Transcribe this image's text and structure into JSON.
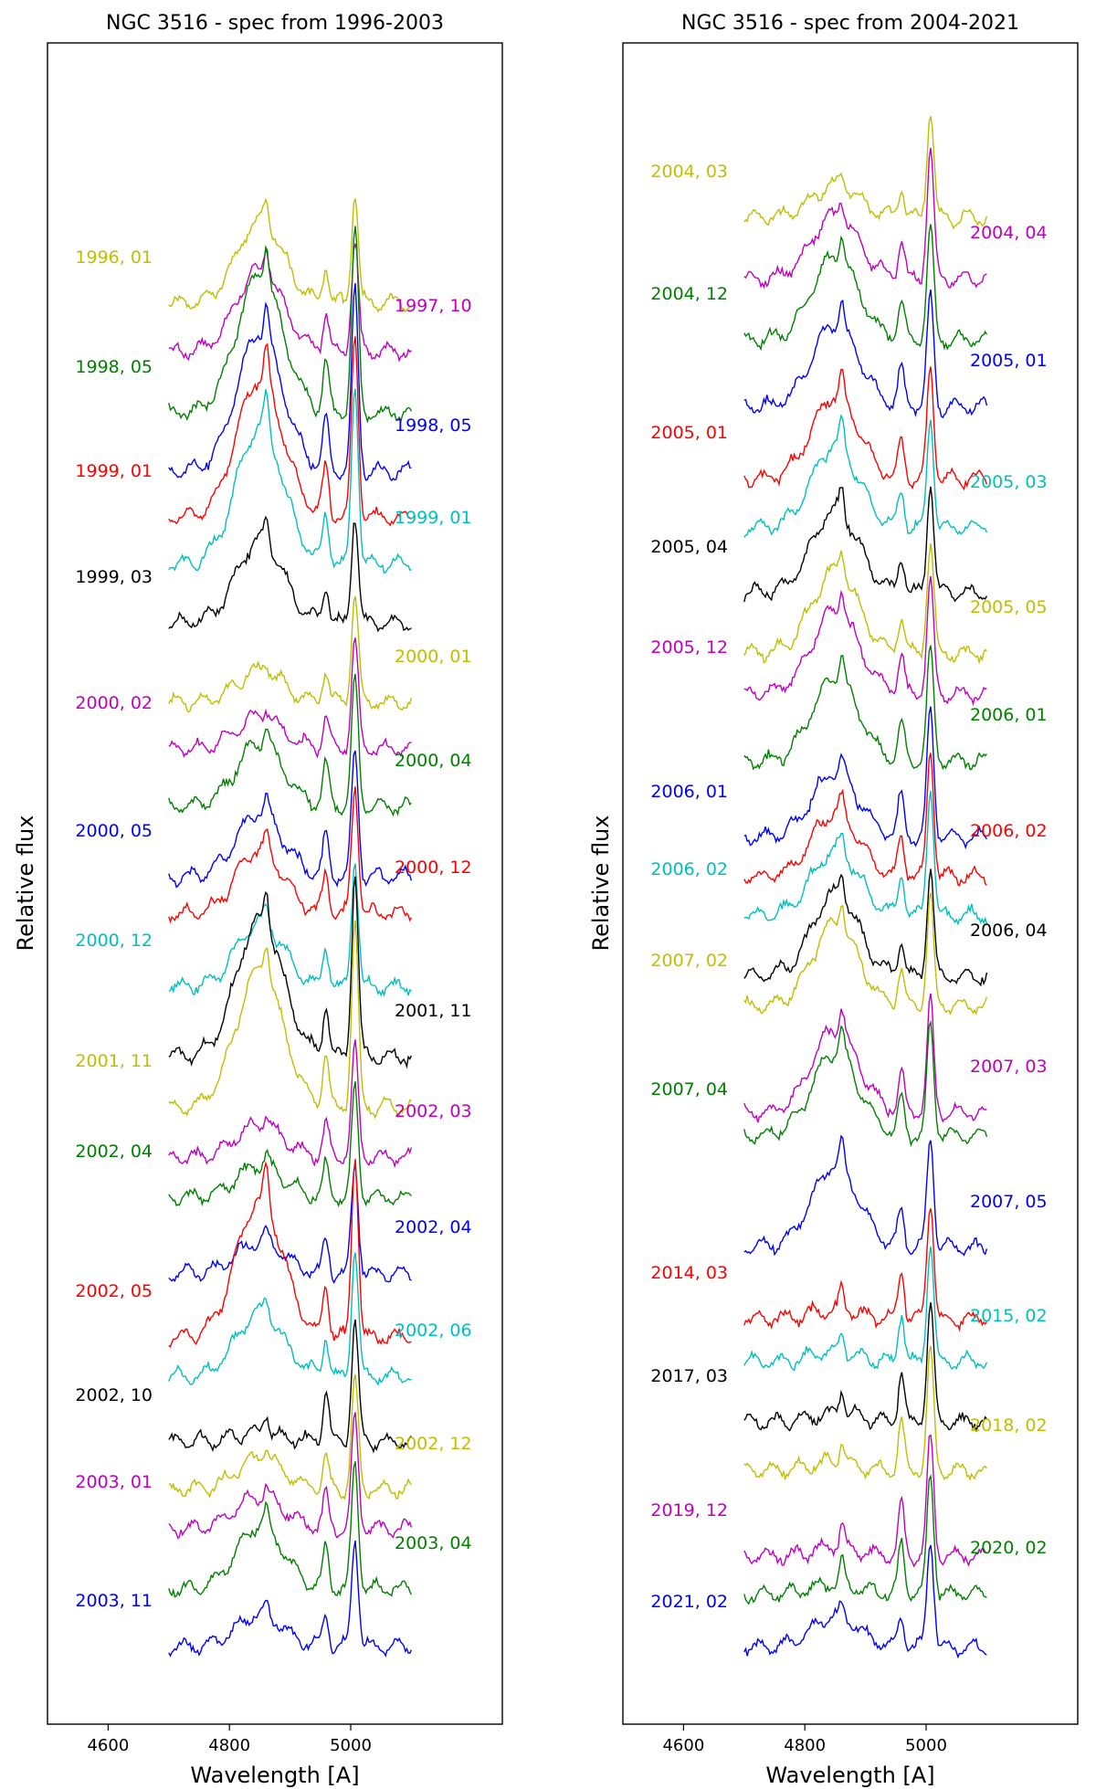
{
  "colors": {
    "y": "#bfbf00",
    "m": "#bf00bf",
    "g": "#007f00",
    "b": "#0000ff",
    "r": "#ff0000",
    "c": "#00bfbf",
    "k": "#000000"
  },
  "chart_data": [
    {
      "type": "line",
      "title": "NGC 3516 - spec from 1996-2003",
      "xlabel": "Wavelength [A]",
      "ylabel": "Relative flux",
      "xlim": [
        4500,
        5250
      ],
      "xticks": [
        "4600",
        "4800",
        "5000"
      ],
      "series": [
        {
          "name": "1996, 01",
          "color": "y",
          "side": "left",
          "shape": "broad"
        },
        {
          "name": "1997, 10",
          "color": "m",
          "side": "right",
          "shape": "broad"
        },
        {
          "name": "1998, 05",
          "color": "g",
          "side": "left",
          "shape": "strong"
        },
        {
          "name": "1998, 05",
          "color": "b",
          "side": "right",
          "shape": "strong"
        },
        {
          "name": "1999, 01",
          "color": "r",
          "side": "left",
          "shape": "strong"
        },
        {
          "name": "1999, 01",
          "color": "c",
          "side": "right",
          "shape": "strong"
        },
        {
          "name": "1999, 03",
          "color": "k",
          "side": "left",
          "shape": "broad"
        },
        {
          "name": "2000, 01",
          "color": "y",
          "side": "right",
          "shape": "weak"
        },
        {
          "name": "2000, 02",
          "color": "m",
          "side": "left",
          "shape": "weak"
        },
        {
          "name": "2000, 04",
          "color": "g",
          "side": "right",
          "shape": "medium"
        },
        {
          "name": "2000, 05",
          "color": "b",
          "side": "left",
          "shape": "medium"
        },
        {
          "name": "2000, 12",
          "color": "r",
          "side": "right",
          "shape": "medium"
        },
        {
          "name": "2000, 12",
          "color": "c",
          "side": "left",
          "shape": "medium"
        },
        {
          "name": "2001, 11",
          "color": "k",
          "side": "right",
          "shape": "strong"
        },
        {
          "name": "2001, 11",
          "color": "y",
          "side": "left",
          "shape": "strong"
        },
        {
          "name": "2002, 03",
          "color": "m",
          "side": "right",
          "shape": "weak"
        },
        {
          "name": "2002, 04",
          "color": "g",
          "side": "left",
          "shape": "weak"
        },
        {
          "name": "2002, 04",
          "color": "b",
          "side": "right",
          "shape": "weak"
        },
        {
          "name": "2002, 05",
          "color": "r",
          "side": "left",
          "shape": "strong"
        },
        {
          "name": "2002, 06",
          "color": "c",
          "side": "right",
          "shape": "medium"
        },
        {
          "name": "2002, 10",
          "color": "k",
          "side": "left",
          "shape": "narrow"
        },
        {
          "name": "2002, 12",
          "color": "y",
          "side": "right",
          "shape": "weak"
        },
        {
          "name": "2003, 01",
          "color": "m",
          "side": "left",
          "shape": "weak"
        },
        {
          "name": "2003, 04",
          "color": "g",
          "side": "right",
          "shape": "medium"
        },
        {
          "name": "2003, 11",
          "color": "b",
          "side": "left",
          "shape": "weak"
        }
      ]
    },
    {
      "type": "line",
      "title": "NGC 3516 - spec from 2004-2021",
      "xlabel": "Wavelength [A]",
      "ylabel": "Relative flux",
      "xlim": [
        4500,
        5250
      ],
      "xticks": [
        "4600",
        "4800",
        "5000"
      ],
      "series": [
        {
          "name": "2004, 03",
          "color": "y",
          "side": "left",
          "shape": "weak"
        },
        {
          "name": "2004, 04",
          "color": "m",
          "side": "right",
          "shape": "medium"
        },
        {
          "name": "2004, 12",
          "color": "g",
          "side": "left",
          "shape": "broad"
        },
        {
          "name": "2005, 01",
          "color": "b",
          "side": "right",
          "shape": "broad"
        },
        {
          "name": "2005, 01",
          "color": "r",
          "side": "left",
          "shape": "broad"
        },
        {
          "name": "2005, 03",
          "color": "c",
          "side": "right",
          "shape": "broad"
        },
        {
          "name": "2005, 04",
          "color": "k",
          "side": "left",
          "shape": "broad"
        },
        {
          "name": "2005, 05",
          "color": "y",
          "side": "right",
          "shape": "broad"
        },
        {
          "name": "2005, 12",
          "color": "m",
          "side": "left",
          "shape": "broad"
        },
        {
          "name": "2006, 01",
          "color": "g",
          "side": "right",
          "shape": "broad"
        },
        {
          "name": "2006, 01",
          "color": "b",
          "side": "left",
          "shape": "medium"
        },
        {
          "name": "2006, 02",
          "color": "r",
          "side": "right",
          "shape": "medium"
        },
        {
          "name": "2006, 02",
          "color": "c",
          "side": "left",
          "shape": "medium"
        },
        {
          "name": "2006, 04",
          "color": "k",
          "side": "right",
          "shape": "broad"
        },
        {
          "name": "2007, 02",
          "color": "y",
          "side": "left",
          "shape": "broad"
        },
        {
          "name": "2007, 03",
          "color": "m",
          "side": "right",
          "shape": "broad"
        },
        {
          "name": "2007, 04",
          "color": "g",
          "side": "left",
          "shape": "broad"
        },
        {
          "name": "2007, 05",
          "color": "b",
          "side": "right",
          "shape": "broad"
        },
        {
          "name": "2014, 03",
          "color": "r",
          "side": "left",
          "shape": "narrow"
        },
        {
          "name": "2015, 02",
          "color": "c",
          "side": "right",
          "shape": "narrow"
        },
        {
          "name": "2017, 03",
          "color": "k",
          "side": "left",
          "shape": "narrow"
        },
        {
          "name": "2018, 02",
          "color": "y",
          "side": "right",
          "shape": "narrow"
        },
        {
          "name": "2019, 12",
          "color": "m",
          "side": "left",
          "shape": "narrow"
        },
        {
          "name": "2020, 02",
          "color": "g",
          "side": "right",
          "shape": "narrow"
        },
        {
          "name": "2021, 02",
          "color": "b",
          "side": "left",
          "shape": "weak"
        }
      ]
    }
  ]
}
